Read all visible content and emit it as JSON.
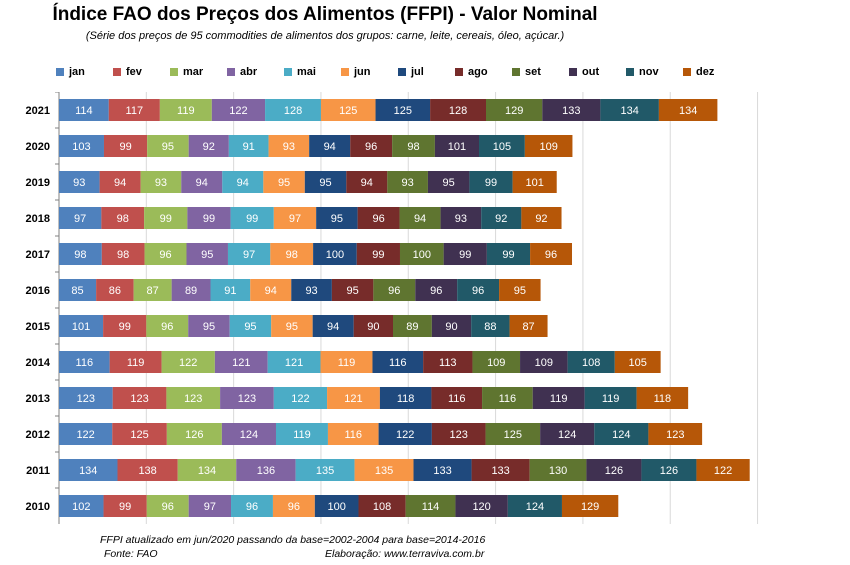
{
  "chart_data": {
    "type": "bar",
    "orientation": "horizontal-stacked",
    "title": "Índice FAO dos Preços dos Alimentos (FFPI) - Valor  Nominal",
    "subtitle": "(Série dos preços  de 95 commodities  de alimentos dos grupos: carne, leite, cereais, óleo, açúcar.)",
    "categories": [
      "2021",
      "2020",
      "2019",
      "2018",
      "2017",
      "2016",
      "2015",
      "2014",
      "2013",
      "2012",
      "2011",
      "2010"
    ],
    "legend_position": "top",
    "grid": "vertical",
    "xlim": [
      0,
      1600
    ],
    "series": [
      {
        "name": "jan",
        "color": "#4f81bd",
        "values": [
          114,
          103,
          93,
          97,
          98,
          85,
          101,
          116,
          123,
          122,
          134,
          102
        ]
      },
      {
        "name": "fev",
        "color": "#c0504d",
        "values": [
          117,
          99,
          94,
          98,
          98,
          86,
          99,
          119,
          123,
          125,
          138,
          99
        ]
      },
      {
        "name": "mar",
        "color": "#9bbb59",
        "values": [
          119,
          95,
          93,
          99,
          96,
          87,
          96,
          122,
          123,
          126,
          134,
          96
        ]
      },
      {
        "name": "abr",
        "color": "#8064a2",
        "values": [
          122,
          92,
          94,
          99,
          95,
          89,
          95,
          121,
          123,
          124,
          136,
          97
        ]
      },
      {
        "name": "mai",
        "color": "#4bacc6",
        "values": [
          128,
          91,
          94,
          99,
          97,
          91,
          95,
          121,
          122,
          119,
          135,
          96
        ]
      },
      {
        "name": "jun",
        "color": "#f79646",
        "values": [
          125,
          93,
          95,
          97,
          98,
          94,
          95,
          119,
          121,
          116,
          135,
          96
        ]
      },
      {
        "name": "jul",
        "color": "#1f497d",
        "values": [
          125,
          94,
          95,
          95,
          100,
          93,
          94,
          116,
          118,
          122,
          133,
          100
        ]
      },
      {
        "name": "ago",
        "color": "#772c2a",
        "values": [
          128,
          96,
          94,
          96,
          99,
          95,
          90,
          113,
          116,
          123,
          133,
          108
        ]
      },
      {
        "name": "set",
        "color": "#5f7530",
        "values": [
          129,
          98,
          93,
          94,
          100,
          96,
          89,
          109,
          116,
          125,
          130,
          114
        ]
      },
      {
        "name": "out",
        "color": "#403151",
        "values": [
          133,
          101,
          95,
          93,
          99,
          96,
          90,
          109,
          119,
          124,
          126,
          120
        ]
      },
      {
        "name": "nov",
        "color": "#215968",
        "values": [
          134,
          105,
          99,
          92,
          99,
          96,
          88,
          108,
          119,
          124,
          126,
          124
        ]
      },
      {
        "name": "dez",
        "color": "#b65708",
        "values": [
          134,
          109,
          101,
          92,
          96,
          95,
          87,
          105,
          118,
          123,
          122,
          129
        ]
      }
    ]
  },
  "footnote": "FFPI atualizado em jun/2020 passando da base=2002-2004 para base=2014-2016",
  "source": "Fonte: FAO",
  "credit": "Elaboração:  www.terraviva.com.br"
}
